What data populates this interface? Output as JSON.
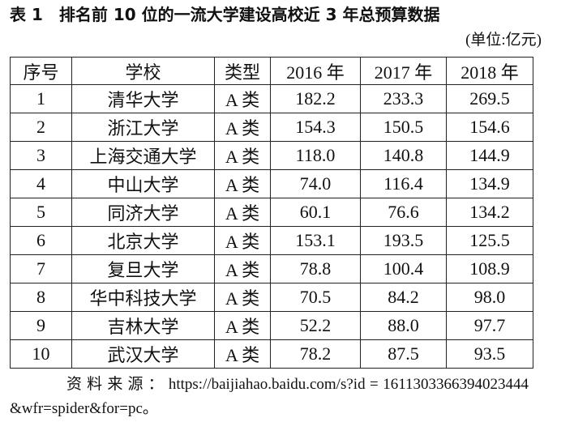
{
  "header": {
    "title": "表 1　排名前 10 位的一流大学建设高校近 3 年总预算数据",
    "unit": "(单位:亿元)"
  },
  "table": {
    "columns": [
      "序号",
      "学校",
      "类型",
      "2016 年",
      "2017 年",
      "2018 年"
    ],
    "rows": [
      [
        "1",
        "清华大学",
        "A 类",
        "182.2",
        "233.3",
        "269.5"
      ],
      [
        "2",
        "浙江大学",
        "A 类",
        "154.3",
        "150.5",
        "154.6"
      ],
      [
        "3",
        "上海交通大学",
        "A 类",
        "118.0",
        "140.8",
        "144.9"
      ],
      [
        "4",
        "中山大学",
        "A 类",
        "74.0",
        "116.4",
        "134.9"
      ],
      [
        "5",
        "同济大学",
        "A 类",
        "60.1",
        "76.6",
        "134.2"
      ],
      [
        "6",
        "北京大学",
        "A 类",
        "153.1",
        "193.5",
        "125.5"
      ],
      [
        "7",
        "复旦大学",
        "A 类",
        "78.8",
        "100.4",
        "108.9"
      ],
      [
        "8",
        "华中科技大学",
        "A 类",
        "70.5",
        "84.2",
        "98.0"
      ],
      [
        "9",
        "吉林大学",
        "A 类",
        "52.2",
        "88.0",
        "97.7"
      ],
      [
        "10",
        "武汉大学",
        "A 类",
        "78.2",
        "87.5",
        "93.5"
      ]
    ]
  },
  "source": "资 料 来 源 ： https://baijiahao.baidu.com/s?id = 1611303366394023444&wfr=spider&for=pc。"
}
